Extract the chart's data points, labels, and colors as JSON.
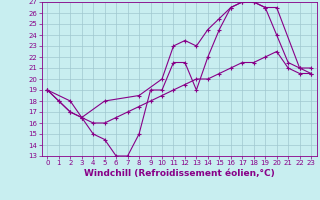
{
  "xlabel": "Windchill (Refroidissement éolien,°C)",
  "bg_color": "#c8eef0",
  "grid_color": "#a0c8d0",
  "line_color": "#880088",
  "xlim": [
    -0.5,
    23.5
  ],
  "ylim": [
    13,
    27
  ],
  "xticks": [
    0,
    1,
    2,
    3,
    4,
    5,
    6,
    7,
    8,
    9,
    10,
    11,
    12,
    13,
    14,
    15,
    16,
    17,
    18,
    19,
    20,
    21,
    22,
    23
  ],
  "yticks": [
    13,
    14,
    15,
    16,
    17,
    18,
    19,
    20,
    21,
    22,
    23,
    24,
    25,
    26,
    27
  ],
  "line1_x": [
    0,
    1,
    2,
    3,
    4,
    5,
    6,
    7,
    8,
    9,
    10,
    11,
    12,
    13,
    14,
    15,
    16,
    17,
    18,
    19,
    20,
    21,
    22,
    23
  ],
  "line1_y": [
    19.0,
    18.0,
    17.0,
    16.5,
    15.0,
    14.5,
    13.0,
    13.0,
    15.0,
    19.0,
    19.0,
    21.5,
    21.5,
    19.0,
    22.0,
    24.5,
    26.5,
    27.0,
    27.0,
    26.5,
    24.0,
    21.5,
    21.0,
    21.0
  ],
  "line2_x": [
    0,
    2,
    3,
    5,
    8,
    10,
    11,
    12,
    13,
    14,
    15,
    16,
    17,
    18,
    19,
    20,
    22,
    23
  ],
  "line2_y": [
    19.0,
    18.0,
    16.5,
    18.0,
    18.5,
    20.0,
    23.0,
    23.5,
    23.0,
    24.5,
    25.5,
    26.5,
    27.0,
    27.0,
    26.5,
    26.5,
    21.0,
    20.5
  ],
  "line3_x": [
    0,
    1,
    2,
    3,
    4,
    5,
    6,
    7,
    8,
    9,
    10,
    11,
    12,
    13,
    14,
    15,
    16,
    17,
    18,
    19,
    20,
    21,
    22,
    23
  ],
  "line3_y": [
    19.0,
    18.0,
    17.0,
    16.5,
    16.0,
    16.0,
    16.5,
    17.0,
    17.5,
    18.0,
    18.5,
    19.0,
    19.5,
    20.0,
    20.0,
    20.5,
    21.0,
    21.5,
    21.5,
    22.0,
    22.5,
    21.0,
    20.5,
    20.5
  ],
  "tick_fontsize": 5,
  "xlabel_fontsize": 6.5,
  "figwidth": 3.2,
  "figheight": 2.0,
  "dpi": 100
}
